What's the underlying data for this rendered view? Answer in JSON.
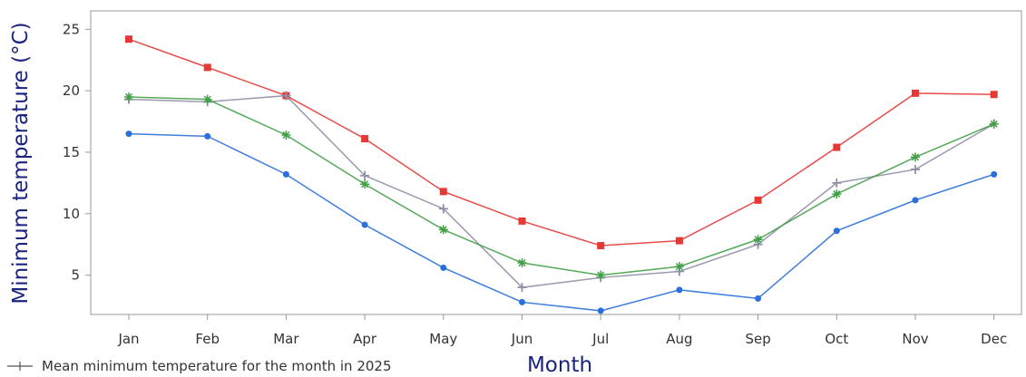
{
  "chart_data": {
    "type": "line",
    "xlabel": "Month",
    "ylabel": "Minimum temperature (°C)",
    "categories": [
      "Jan",
      "Feb",
      "Mar",
      "Apr",
      "May",
      "Jun",
      "Jul",
      "Aug",
      "Sep",
      "Oct",
      "Nov",
      "Dec"
    ],
    "ylim": [
      1.8,
      26.5
    ],
    "yticks": [
      5,
      10,
      15,
      20,
      25
    ],
    "grid": false,
    "legend": {
      "placement": "bottom-left",
      "text": "Mean minimum temperature for the month in 2025"
    },
    "series": [
      {
        "color": "#e53935",
        "marker": "square",
        "values": [
          24.2,
          21.9,
          19.6,
          16.1,
          11.8,
          9.4,
          7.4,
          7.8,
          11.1,
          15.4,
          19.8,
          19.7
        ]
      },
      {
        "color": "#8e8ea6",
        "marker": "plus",
        "values": [
          19.3,
          19.1,
          19.6,
          13.1,
          10.4,
          4.0,
          4.8,
          5.3,
          7.5,
          12.5,
          13.6,
          17.3
        ]
      },
      {
        "color": "#43a047",
        "marker": "star",
        "values": [
          19.5,
          19.3,
          16.4,
          12.4,
          8.7,
          6.0,
          5.0,
          5.7,
          7.9,
          11.6,
          14.6,
          17.3
        ]
      },
      {
        "color": "#2a6fdb",
        "marker": "circle",
        "values": [
          16.5,
          16.3,
          13.2,
          9.1,
          5.6,
          2.8,
          2.1,
          3.8,
          3.1,
          8.6,
          11.1,
          13.2
        ]
      }
    ]
  }
}
